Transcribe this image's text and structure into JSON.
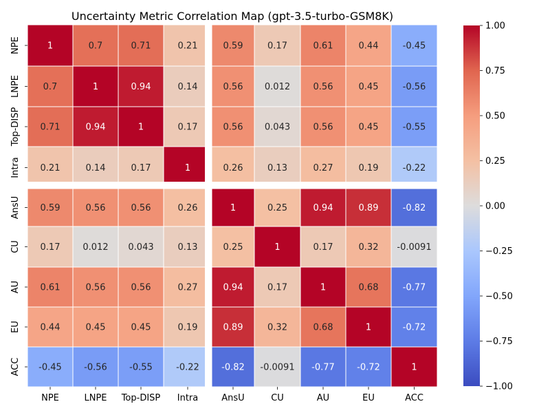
{
  "chart_data": {
    "type": "heatmap",
    "title": "Uncertainty Metric Correlation Map (gpt-3.5-turbo-GSM8K)",
    "colormap": "coolwarm",
    "labels": [
      "NPE",
      "LNPE",
      "Top-DISP",
      "Intra",
      "AnsU",
      "CU",
      "AU",
      "EU",
      "ACC"
    ],
    "values": [
      [
        1,
        0.7,
        0.71,
        0.21,
        0.59,
        0.17,
        0.61,
        0.44,
        -0.45
      ],
      [
        0.7,
        1,
        0.94,
        0.14,
        0.56,
        0.012,
        0.56,
        0.45,
        -0.56
      ],
      [
        0.71,
        0.94,
        1,
        0.17,
        0.56,
        0.043,
        0.56,
        0.45,
        -0.55
      ],
      [
        0.21,
        0.14,
        0.17,
        1,
        0.26,
        0.13,
        0.27,
        0.19,
        -0.22
      ],
      [
        0.59,
        0.56,
        0.56,
        0.26,
        1,
        0.25,
        0.94,
        0.89,
        -0.82
      ],
      [
        0.17,
        0.012,
        0.043,
        0.13,
        0.25,
        1,
        0.17,
        0.32,
        -0.0091
      ],
      [
        0.61,
        0.56,
        0.56,
        0.27,
        0.94,
        0.17,
        1,
        0.68,
        -0.77
      ],
      [
        0.44,
        0.45,
        0.45,
        0.19,
        0.89,
        0.32,
        0.68,
        1,
        -0.72
      ],
      [
        -0.45,
        -0.56,
        -0.55,
        -0.22,
        -0.82,
        -0.0091,
        -0.77,
        -0.72,
        1
      ]
    ],
    "group_split_after": 4,
    "colorbar": {
      "range": [
        -1,
        1
      ],
      "ticks": [
        "1.00",
        "0.75",
        "0.50",
        "0.25",
        "0.00",
        "−0.25",
        "−0.50",
        "−0.75",
        "−1.00"
      ]
    }
  }
}
